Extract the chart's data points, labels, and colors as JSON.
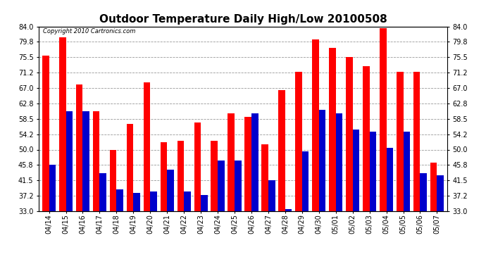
{
  "title": "Outdoor Temperature Daily High/Low 20100508",
  "copyright": "Copyright 2010 Cartronics.com",
  "yticks": [
    33.0,
    37.2,
    41.5,
    45.8,
    50.0,
    54.2,
    58.5,
    62.8,
    67.0,
    71.2,
    75.5,
    79.8,
    84.0
  ],
  "ylim": [
    33.0,
    84.0
  ],
  "dates": [
    "04/14",
    "04/15",
    "04/16",
    "04/17",
    "04/18",
    "04/19",
    "04/20",
    "04/21",
    "04/22",
    "04/23",
    "04/24",
    "04/25",
    "04/26",
    "04/27",
    "04/28",
    "04/29",
    "04/30",
    "05/01",
    "05/02",
    "05/03",
    "05/04",
    "05/05",
    "05/06",
    "05/07"
  ],
  "highs": [
    76.0,
    81.0,
    68.0,
    60.5,
    50.0,
    57.0,
    68.5,
    52.0,
    52.5,
    57.5,
    52.5,
    60.0,
    59.0,
    51.5,
    66.5,
    71.5,
    80.5,
    78.0,
    75.5,
    73.0,
    83.5,
    71.5,
    71.5,
    46.5
  ],
  "lows": [
    45.8,
    60.5,
    60.5,
    43.5,
    39.0,
    38.0,
    38.5,
    44.5,
    38.5,
    37.5,
    47.0,
    47.0,
    60.0,
    41.5,
    33.5,
    49.5,
    61.0,
    60.0,
    55.5,
    55.0,
    50.5,
    55.0,
    43.5,
    43.0
  ],
  "high_color": "#ff0000",
  "low_color": "#0000cc",
  "bg_color": "#ffffff",
  "grid_color": "#999999",
  "title_fontsize": 11,
  "bar_width": 0.4,
  "tick_fontsize": 7
}
